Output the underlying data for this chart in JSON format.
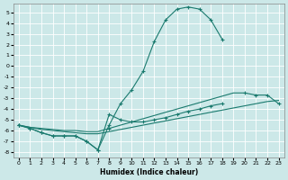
{
  "xlabel": "Humidex (Indice chaleur)",
  "bg_color": "#cce8e8",
  "grid_color": "#ffffff",
  "line_color": "#1a7a6e",
  "xlim": [
    -0.5,
    23.5
  ],
  "ylim": [
    -8.5,
    5.8
  ],
  "xticks": [
    0,
    1,
    2,
    3,
    4,
    5,
    6,
    7,
    8,
    9,
    10,
    11,
    12,
    13,
    14,
    15,
    16,
    17,
    18,
    19,
    20,
    21,
    22,
    23
  ],
  "yticks": [
    -8,
    -7,
    -6,
    -5,
    -4,
    -3,
    -2,
    -1,
    0,
    1,
    2,
    3,
    4,
    5
  ],
  "curve1_x": [
    0,
    1,
    2,
    3,
    4,
    5,
    6,
    7,
    8,
    9,
    10,
    11,
    12,
    13,
    14,
    15,
    16,
    17,
    18
  ],
  "curve1_y": [
    -5.5,
    -5.8,
    -6.2,
    -6.5,
    -6.5,
    -6.5,
    -7.0,
    -7.8,
    -5.5,
    -3.5,
    -2.2,
    -0.5,
    2.3,
    4.3,
    5.3,
    5.5,
    5.3,
    4.3,
    2.5
  ],
  "curve2_x": [
    0,
    1,
    2,
    3,
    4,
    5,
    6,
    7,
    8,
    9,
    10,
    11,
    12,
    13,
    14,
    15,
    16,
    17,
    18
  ],
  "curve2_y": [
    -5.5,
    -5.8,
    -6.2,
    -6.5,
    -6.5,
    -6.5,
    -7.0,
    -7.8,
    -4.5,
    -5.0,
    -5.2,
    -5.2,
    -5.0,
    -4.8,
    -4.5,
    -4.2,
    -4.0,
    -3.7,
    -3.5
  ],
  "line3_x": [
    0,
    1,
    2,
    3,
    4,
    5,
    6,
    7,
    8,
    9,
    10,
    11,
    12,
    13,
    14,
    15,
    16,
    17,
    18,
    19,
    20,
    21,
    22,
    23
  ],
  "line3_y": [
    -5.5,
    -5.7,
    -5.8,
    -5.9,
    -6.0,
    -6.0,
    -6.1,
    -6.1,
    -5.8,
    -5.5,
    -5.2,
    -4.9,
    -4.6,
    -4.3,
    -4.0,
    -3.7,
    -3.4,
    -3.1,
    -2.8,
    -2.5,
    -2.5,
    -2.7,
    -2.7,
    -3.5
  ],
  "line4_x": [
    0,
    1,
    2,
    3,
    4,
    5,
    6,
    7,
    8,
    9,
    10,
    11,
    12,
    13,
    14,
    15,
    16,
    17,
    18,
    19,
    20,
    21,
    22,
    23
  ],
  "line4_y": [
    -5.5,
    -5.7,
    -5.9,
    -6.0,
    -6.1,
    -6.2,
    -6.3,
    -6.3,
    -6.1,
    -5.9,
    -5.7,
    -5.5,
    -5.3,
    -5.1,
    -4.9,
    -4.7,
    -4.5,
    -4.3,
    -4.1,
    -3.9,
    -3.7,
    -3.5,
    -3.3,
    -3.2
  ]
}
